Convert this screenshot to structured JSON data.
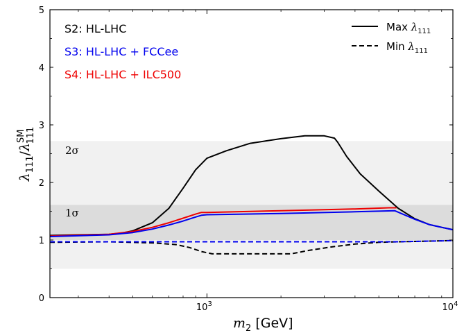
{
  "chart_data": {
    "type": "line",
    "xscale": "log",
    "xlim": [
      230,
      10000
    ],
    "ylim": [
      0,
      5
    ],
    "xlabel": "m2 [GeV]",
    "ylabel": "λ111/λ111^SM",
    "x_ticks": [
      {
        "value": 1000,
        "base": "10",
        "exp": "3"
      },
      {
        "value": 10000,
        "base": "10",
        "exp": "4"
      }
    ],
    "y_ticks": [
      0,
      1,
      2,
      3,
      4,
      5
    ],
    "bands": [
      {
        "label": "2σ",
        "y_range": [
          0.5,
          2.72
        ],
        "color": "#f1f1f1"
      },
      {
        "label": "1σ",
        "y_range": [
          1.0,
          1.61
        ],
        "color": "#dcdcdc"
      }
    ],
    "annotations": [
      {
        "text": "S2: HL-LHC",
        "color": "#000000"
      },
      {
        "text": "S3: HL-LHC + FCCee",
        "color": "#0000ee"
      },
      {
        "text": "S4: HL-LHC + ILC500",
        "color": "#ee0000"
      }
    ],
    "legend": {
      "position": "top-right",
      "entries": [
        {
          "label": "Max λ111",
          "style": "solid"
        },
        {
          "label": "Min λ111",
          "style": "dashed"
        }
      ]
    },
    "series": [
      {
        "name": "S2 Max",
        "color": "#000000",
        "style": "solid",
        "points": [
          [
            230,
            1.08
          ],
          [
            300,
            1.09
          ],
          [
            400,
            1.1
          ],
          [
            450,
            1.12
          ],
          [
            500,
            1.16
          ],
          [
            600,
            1.3
          ],
          [
            700,
            1.55
          ],
          [
            800,
            1.9
          ],
          [
            900,
            2.22
          ],
          [
            1000,
            2.42
          ],
          [
            1200,
            2.55
          ],
          [
            1500,
            2.68
          ],
          [
            2000,
            2.76
          ],
          [
            2500,
            2.81
          ],
          [
            3000,
            2.81
          ],
          [
            3300,
            2.77
          ],
          [
            3400,
            2.7
          ],
          [
            3700,
            2.45
          ],
          [
            4200,
            2.15
          ],
          [
            5000,
            1.85
          ],
          [
            6000,
            1.55
          ],
          [
            7000,
            1.37
          ],
          [
            8000,
            1.27
          ],
          [
            9000,
            1.22
          ],
          [
            10000,
            1.18
          ]
        ]
      },
      {
        "name": "S2 Min",
        "color": "#000000",
        "style": "dashed",
        "points": [
          [
            230,
            0.96
          ],
          [
            400,
            0.97
          ],
          [
            600,
            0.95
          ],
          [
            750,
            0.92
          ],
          [
            850,
            0.87
          ],
          [
            950,
            0.8
          ],
          [
            1050,
            0.76
          ],
          [
            1300,
            0.76
          ],
          [
            1700,
            0.76
          ],
          [
            2200,
            0.76
          ],
          [
            2600,
            0.82
          ],
          [
            3200,
            0.88
          ],
          [
            4000,
            0.93
          ],
          [
            5000,
            0.96
          ],
          [
            6000,
            0.97
          ],
          [
            10000,
            0.99
          ]
        ]
      },
      {
        "name": "S4 Max",
        "color": "#ee0000",
        "style": "solid",
        "points": [
          [
            230,
            1.07
          ],
          [
            400,
            1.1
          ],
          [
            500,
            1.15
          ],
          [
            600,
            1.22
          ],
          [
            700,
            1.3
          ],
          [
            800,
            1.38
          ],
          [
            900,
            1.45
          ],
          [
            950,
            1.48
          ],
          [
            1000,
            1.48
          ],
          [
            2000,
            1.51
          ],
          [
            4000,
            1.54
          ],
          [
            5500,
            1.56
          ],
          [
            5900,
            1.56
          ]
        ]
      },
      {
        "name": "S3 Max",
        "color": "#0000ee",
        "style": "solid",
        "points": [
          [
            230,
            1.06
          ],
          [
            400,
            1.09
          ],
          [
            500,
            1.13
          ],
          [
            600,
            1.19
          ],
          [
            700,
            1.26
          ],
          [
            800,
            1.33
          ],
          [
            900,
            1.4
          ],
          [
            950,
            1.43
          ],
          [
            1000,
            1.44
          ],
          [
            2000,
            1.46
          ],
          [
            4000,
            1.49
          ],
          [
            5800,
            1.51
          ],
          [
            7000,
            1.36
          ],
          [
            8000,
            1.27
          ],
          [
            9000,
            1.22
          ],
          [
            10000,
            1.18
          ]
        ]
      },
      {
        "name": "S3/S4 Min",
        "color": "#0000ee",
        "style": "dashed",
        "points": [
          [
            230,
            0.97
          ],
          [
            1000,
            0.97
          ],
          [
            3000,
            0.97
          ],
          [
            6000,
            0.97
          ],
          [
            10000,
            0.99
          ]
        ]
      }
    ]
  }
}
